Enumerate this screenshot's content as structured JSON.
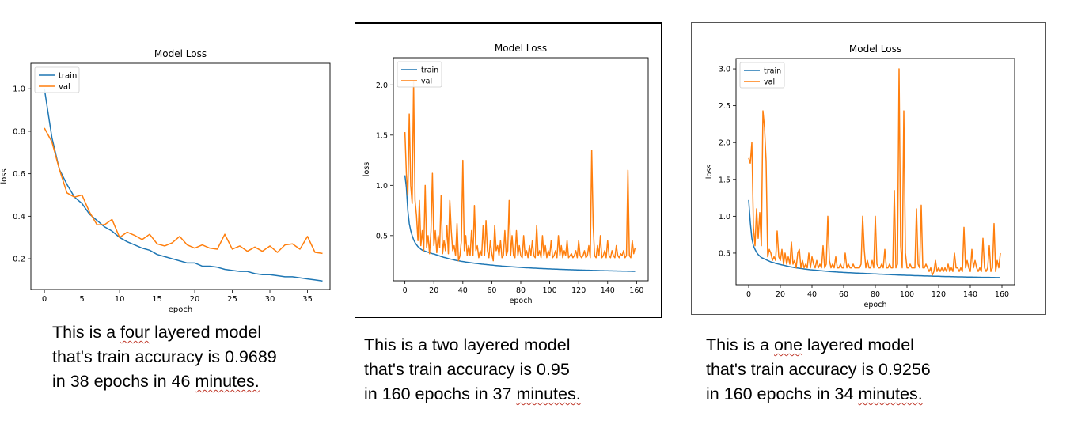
{
  "chart_data": [
    {
      "type": "line",
      "title": "Model Loss",
      "xlabel": "epoch",
      "ylabel": "loss",
      "xlim": [
        -1.8,
        38
      ],
      "ylim": [
        0.055,
        1.12
      ],
      "xticks": [
        0,
        5,
        10,
        15,
        20,
        25,
        30,
        35
      ],
      "yticks": [
        0.2,
        0.4,
        0.6,
        0.8,
        1.0
      ],
      "ytick_labels": [
        "0.2",
        "0.4",
        "0.6",
        "0.8",
        "1.0"
      ],
      "legend": "upper-left",
      "series": [
        {
          "name": "train",
          "color": "#1f77b4",
          "values": [
            1.0,
            0.77,
            0.62,
            0.55,
            0.49,
            0.46,
            0.41,
            0.38,
            0.35,
            0.33,
            0.3,
            0.28,
            0.265,
            0.25,
            0.24,
            0.22,
            0.21,
            0.2,
            0.19,
            0.18,
            0.18,
            0.165,
            0.165,
            0.16,
            0.15,
            0.145,
            0.14,
            0.14,
            0.13,
            0.125,
            0.125,
            0.12,
            0.115,
            0.115,
            0.11,
            0.105,
            0.1,
            0.095
          ]
        },
        {
          "name": "val",
          "color": "#ff7f0e",
          "values": [
            0.815,
            0.75,
            0.62,
            0.51,
            0.49,
            0.5,
            0.42,
            0.36,
            0.36,
            0.385,
            0.3,
            0.325,
            0.31,
            0.29,
            0.315,
            0.27,
            0.26,
            0.275,
            0.305,
            0.265,
            0.25,
            0.265,
            0.25,
            0.245,
            0.315,
            0.245,
            0.26,
            0.235,
            0.255,
            0.235,
            0.26,
            0.23,
            0.265,
            0.27,
            0.245,
            0.305,
            0.23,
            0.225
          ]
        }
      ]
    },
    {
      "type": "line",
      "title": "Model Loss",
      "xlabel": "epoch",
      "ylabel": "loss",
      "xlim": [
        -8,
        168
      ],
      "ylim": [
        0.05,
        2.27
      ],
      "xticks": [
        0,
        20,
        40,
        60,
        80,
        100,
        120,
        140,
        160
      ],
      "yticks": [
        0.5,
        1.0,
        1.5,
        2.0
      ],
      "ytick_labels": [
        "0.5",
        "1.0",
        "1.5",
        "2.0"
      ],
      "legend": "upper-left",
      "series": [
        {
          "name": "train",
          "color": "#1f77b4",
          "values": [
            1.1,
            0.98,
            0.75,
            0.62,
            0.55,
            0.5,
            0.46,
            0.43,
            0.41,
            0.39,
            0.38,
            0.365,
            0.355,
            0.35,
            0.345,
            0.34,
            0.335,
            0.33,
            0.325,
            0.32,
            0.318,
            0.312,
            0.308,
            0.302,
            0.298,
            0.292,
            0.288,
            0.283,
            0.28,
            0.276,
            0.272,
            0.268,
            0.265,
            0.262,
            0.258,
            0.255,
            0.252,
            0.25,
            0.247,
            0.244,
            0.242,
            0.24,
            0.237,
            0.235,
            0.233,
            0.231,
            0.229,
            0.227,
            0.225,
            0.223,
            0.222,
            0.22,
            0.218,
            0.216,
            0.215,
            0.213,
            0.212,
            0.21,
            0.209,
            0.207,
            0.206,
            0.205,
            0.203,
            0.202,
            0.201,
            0.2,
            0.199,
            0.197,
            0.196,
            0.195,
            0.194,
            0.193,
            0.192,
            0.191,
            0.19,
            0.189,
            0.188,
            0.187,
            0.186,
            0.185,
            0.184,
            0.183,
            0.182,
            0.181,
            0.18,
            0.18,
            0.179,
            0.178,
            0.177,
            0.176,
            0.176,
            0.175,
            0.174,
            0.173,
            0.173,
            0.172,
            0.171,
            0.171,
            0.17,
            0.169,
            0.169,
            0.168,
            0.167,
            0.167,
            0.166,
            0.166,
            0.165,
            0.164,
            0.164,
            0.163,
            0.163,
            0.162,
            0.162,
            0.161,
            0.161,
            0.16,
            0.16,
            0.159,
            0.159,
            0.158,
            0.158,
            0.157,
            0.157,
            0.156,
            0.156,
            0.155,
            0.155,
            0.155,
            0.154,
            0.154,
            0.153,
            0.153,
            0.153,
            0.152,
            0.152,
            0.151,
            0.151,
            0.151,
            0.15,
            0.15,
            0.15,
            0.149,
            0.149,
            0.149,
            0.148,
            0.148,
            0.148,
            0.147,
            0.147,
            0.147,
            0.146,
            0.146,
            0.146,
            0.146,
            0.145,
            0.145,
            0.145,
            0.144,
            0.144,
            0.144
          ]
        },
        {
          "name": "val",
          "color": "#ff7f0e",
          "values": [
            1.53,
            1.12,
            0.9,
            1.71,
            1.0,
            0.82,
            2.03,
            0.85,
            0.7,
            0.45,
            0.85,
            0.4,
            0.55,
            0.35,
            1.0,
            0.38,
            0.5,
            0.32,
            0.55,
            1.12,
            0.4,
            0.55,
            0.33,
            0.5,
            0.38,
            0.9,
            0.32,
            0.45,
            0.35,
            0.6,
            0.32,
            0.85,
            0.55,
            0.35,
            0.4,
            0.3,
            0.62,
            0.25,
            0.3,
            0.45,
            1.25,
            0.35,
            0.5,
            0.3,
            0.4,
            0.3,
            0.55,
            0.3,
            0.8,
            0.35,
            0.4,
            0.28,
            0.35,
            0.3,
            0.6,
            0.3,
            0.65,
            0.35,
            0.28,
            0.45,
            0.32,
            0.25,
            0.6,
            0.35,
            0.4,
            0.3,
            0.45,
            0.28,
            0.3,
            0.55,
            0.3,
            0.35,
            0.85,
            0.3,
            0.5,
            0.3,
            0.28,
            0.55,
            0.3,
            0.4,
            0.3,
            0.28,
            0.5,
            0.3,
            0.35,
            0.28,
            0.4,
            0.3,
            0.45,
            0.3,
            0.28,
            0.6,
            0.3,
            0.35,
            0.28,
            0.5,
            0.3,
            0.4,
            0.28,
            0.35,
            0.3,
            0.45,
            0.28,
            0.3,
            0.35,
            0.28,
            0.5,
            0.3,
            0.4,
            0.28,
            0.35,
            0.3,
            0.45,
            0.28,
            0.3,
            0.32,
            0.28,
            0.3,
            0.35,
            0.28,
            0.45,
            0.3,
            0.28,
            0.3,
            0.35,
            0.28,
            0.3,
            0.4,
            0.28,
            1.35,
            0.6,
            0.3,
            0.28,
            0.4,
            0.3,
            0.5,
            0.28,
            0.3,
            0.35,
            0.28,
            0.45,
            0.3,
            0.28,
            0.35,
            0.3,
            0.28,
            0.4,
            0.3,
            0.28,
            0.32,
            0.3,
            0.35,
            0.28,
            0.3,
            1.15,
            0.3,
            0.28,
            0.45,
            0.32,
            0.38
          ]
        }
      ]
    },
    {
      "type": "line",
      "title": "Model Loss",
      "xlabel": "epoch",
      "ylabel": "loss",
      "xlim": [
        -8,
        168
      ],
      "ylim": [
        0.07,
        3.14
      ],
      "xticks": [
        0,
        20,
        40,
        60,
        80,
        100,
        120,
        140,
        160
      ],
      "yticks": [
        0.5,
        1.0,
        1.5,
        2.0,
        2.5,
        3.0
      ],
      "ytick_labels": [
        "0.5",
        "1.0",
        "1.5",
        "2.0",
        "2.5",
        "3.0"
      ],
      "legend": "upper-left",
      "series": [
        {
          "name": "train",
          "color": "#1f77b4",
          "values": [
            1.22,
            0.92,
            0.7,
            0.6,
            0.55,
            0.51,
            0.48,
            0.46,
            0.44,
            0.43,
            0.42,
            0.41,
            0.4,
            0.39,
            0.38,
            0.375,
            0.37,
            0.36,
            0.355,
            0.35,
            0.345,
            0.34,
            0.335,
            0.33,
            0.325,
            0.32,
            0.316,
            0.312,
            0.308,
            0.304,
            0.3,
            0.297,
            0.294,
            0.291,
            0.288,
            0.285,
            0.282,
            0.279,
            0.277,
            0.274,
            0.272,
            0.27,
            0.268,
            0.266,
            0.264,
            0.262,
            0.26,
            0.258,
            0.256,
            0.254,
            0.252,
            0.25,
            0.249,
            0.247,
            0.246,
            0.244,
            0.243,
            0.241,
            0.24,
            0.239,
            0.237,
            0.236,
            0.235,
            0.234,
            0.233,
            0.232,
            0.231,
            0.23,
            0.229,
            0.228,
            0.227,
            0.226,
            0.225,
            0.224,
            0.223,
            0.222,
            0.221,
            0.22,
            0.219,
            0.218,
            0.217,
            0.216,
            0.215,
            0.214,
            0.213,
            0.212,
            0.211,
            0.21,
            0.209,
            0.208,
            0.207,
            0.206,
            0.205,
            0.204,
            0.203,
            0.202,
            0.201,
            0.2,
            0.2,
            0.199,
            0.198,
            0.197,
            0.197,
            0.196,
            0.195,
            0.194,
            0.194,
            0.193,
            0.192,
            0.192,
            0.191,
            0.19,
            0.19,
            0.189,
            0.188,
            0.188,
            0.187,
            0.186,
            0.186,
            0.185,
            0.185,
            0.184,
            0.183,
            0.183,
            0.182,
            0.182,
            0.181,
            0.181,
            0.18,
            0.18,
            0.179,
            0.179,
            0.178,
            0.178,
            0.177,
            0.177,
            0.176,
            0.176,
            0.175,
            0.175,
            0.174,
            0.174,
            0.173,
            0.173,
            0.173,
            0.172,
            0.172,
            0.171,
            0.171,
            0.171,
            0.17,
            0.17,
            0.17,
            0.169,
            0.169,
            0.169,
            0.168,
            0.168,
            0.168,
            0.167
          ]
        },
        {
          "name": "val",
          "color": "#ff7f0e",
          "values": [
            1.79,
            1.72,
            2.0,
            0.85,
            0.6,
            1.1,
            0.7,
            1.05,
            0.6,
            2.43,
            2.2,
            1.75,
            0.45,
            0.55,
            0.5,
            0.4,
            0.45,
            0.4,
            0.8,
            0.45,
            0.4,
            0.55,
            0.35,
            0.5,
            0.35,
            0.45,
            0.35,
            0.65,
            0.35,
            0.4,
            0.3,
            0.5,
            0.55,
            0.3,
            0.4,
            0.3,
            0.35,
            0.3,
            0.5,
            0.3,
            0.45,
            0.35,
            0.3,
            0.4,
            0.3,
            0.35,
            0.3,
            0.6,
            0.3,
            0.35,
            1.0,
            0.4,
            0.3,
            0.35,
            0.3,
            0.45,
            0.3,
            0.3,
            0.35,
            0.3,
            0.3,
            0.5,
            0.3,
            0.35,
            0.3,
            0.3,
            0.35,
            0.3,
            0.3,
            0.3,
            0.3,
            0.35,
            1.0,
            0.55,
            0.3,
            0.4,
            0.3,
            0.3,
            0.4,
            0.3,
            1.0,
            0.35,
            0.3,
            0.3,
            0.35,
            0.3,
            0.55,
            0.3,
            0.3,
            0.35,
            0.3,
            0.3,
            1.35,
            0.3,
            0.35,
            3.0,
            0.6,
            0.3,
            2.43,
            0.5,
            0.3,
            0.3,
            0.35,
            0.3,
            0.3,
            0.3,
            1.1,
            0.35,
            0.3,
            1.15,
            0.3,
            0.3,
            0.35,
            0.3,
            0.25,
            0.3,
            0.2,
            0.25,
            0.4,
            0.25,
            0.3,
            0.25,
            0.3,
            0.25,
            0.3,
            0.25,
            0.35,
            0.25,
            0.3,
            0.25,
            0.5,
            0.3,
            0.3,
            0.25,
            0.3,
            0.25,
            0.85,
            0.3,
            0.4,
            0.3,
            0.25,
            0.55,
            0.3,
            0.4,
            0.3,
            0.25,
            0.3,
            0.25,
            0.7,
            0.3,
            0.25,
            0.3,
            0.6,
            0.25,
            0.3,
            0.9,
            0.25,
            0.4,
            0.3,
            0.5
          ]
        }
      ]
    }
  ],
  "captions": [
    {
      "line1a": "This is a ",
      "line1b": "four",
      "line1c": " layered model",
      "line2a": "that's",
      "line2b": " train accuracy is 0.9689",
      "line3a": "in 38 epochs in 46 ",
      "line3b": "minutes."
    },
    {
      "line1a": "This is a two layered model",
      "line1b": "",
      "line1c": "",
      "line2a": "that's",
      "line2b": " train accuracy is 0.95",
      "line3a": "in 160 epochs in 37 ",
      "line3b": "minutes."
    },
    {
      "line1a": "This is a ",
      "line1b": "one",
      "line1c": " layered model",
      "line2a": "that's",
      "line2b": " train accuracy is 0.9256",
      "line3a": "in 160 epochs in 34 ",
      "line3b": "minutes."
    }
  ]
}
